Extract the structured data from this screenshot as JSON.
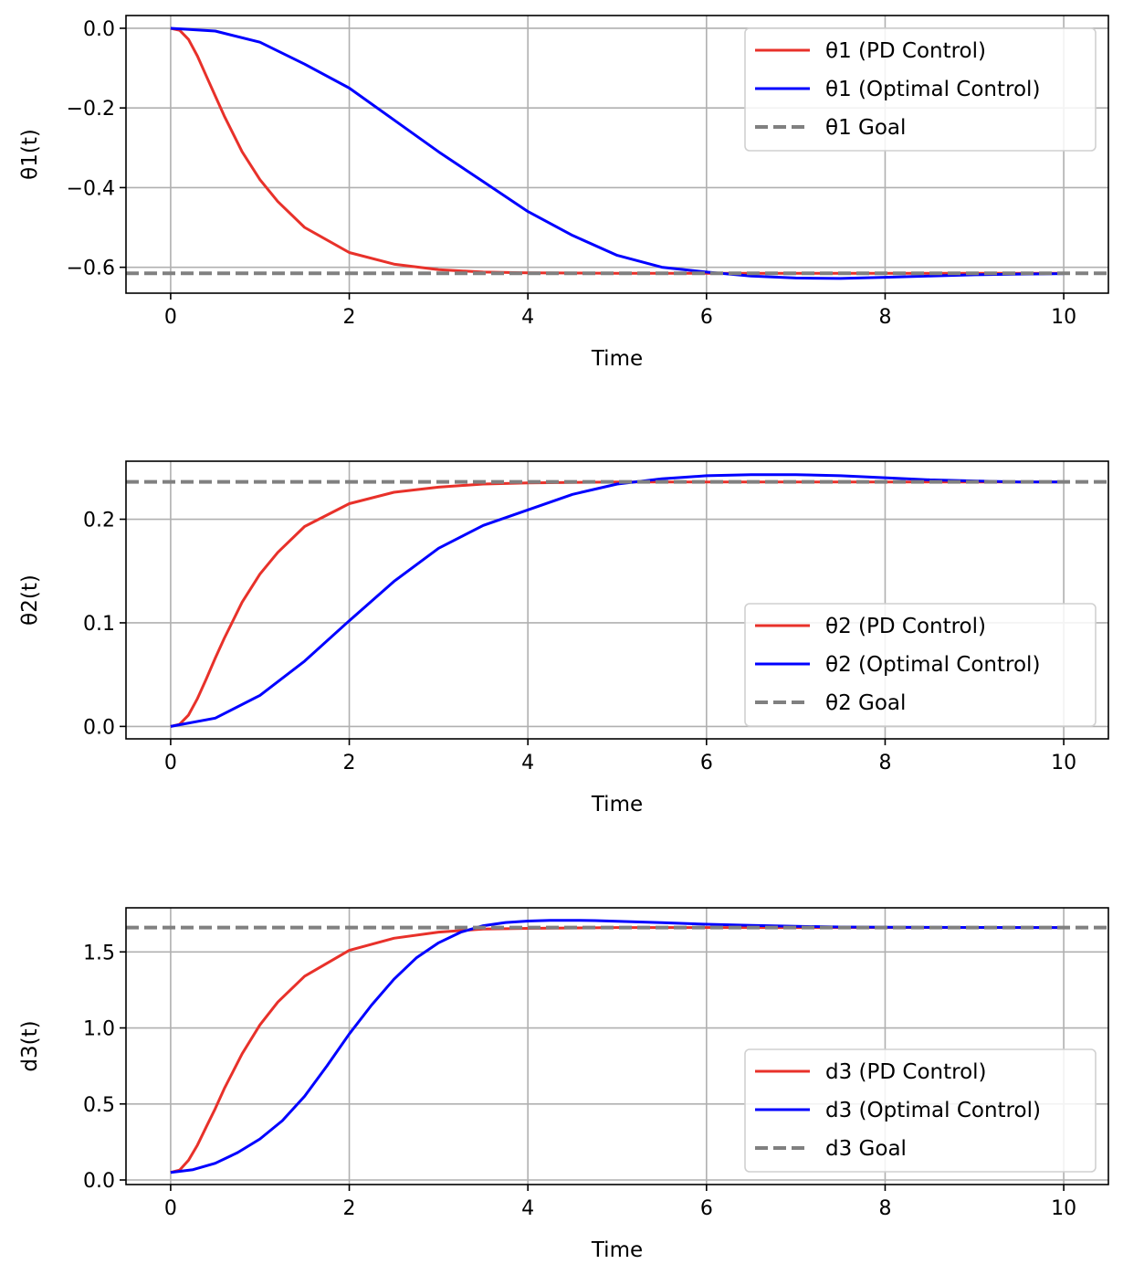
{
  "chart_data": [
    {
      "type": "line",
      "xlabel": "Time",
      "ylabel": "θ1(t)",
      "xlim": [
        -0.5,
        10.5
      ],
      "ylim": [
        -0.665,
        0.032
      ],
      "xticks": [
        0,
        2,
        4,
        6,
        8,
        10
      ],
      "xtick_labels": [
        "0",
        "2",
        "4",
        "6",
        "8",
        "10"
      ],
      "yticks": [
        0.0,
        -0.2,
        -0.4,
        -0.6
      ],
      "ytick_labels": [
        "0.0",
        "−0.2",
        "−0.4",
        "−0.6"
      ],
      "grid": true,
      "legend_position": "upper right",
      "goal": -0.615,
      "series": [
        {
          "name": "θ1 (PD Control)",
          "color": "#e8312a",
          "style": "solid",
          "x": [
            0,
            0.1,
            0.2,
            0.3,
            0.4,
            0.5,
            0.6,
            0.8,
            1.0,
            1.2,
            1.5,
            2.0,
            2.5,
            3.0,
            3.5,
            4.0,
            5.0,
            6.0,
            7.0,
            8.0,
            9.0,
            10.0
          ],
          "y": [
            0.0,
            -0.005,
            -0.028,
            -0.07,
            -0.12,
            -0.17,
            -0.22,
            -0.31,
            -0.38,
            -0.435,
            -0.5,
            -0.563,
            -0.592,
            -0.606,
            -0.612,
            -0.614,
            -0.615,
            -0.615,
            -0.615,
            -0.615,
            -0.615,
            -0.615
          ]
        },
        {
          "name": "θ1 (Optimal Control)",
          "color": "#0000ff",
          "style": "solid",
          "x": [
            0,
            0.5,
            1.0,
            1.5,
            2.0,
            2.5,
            3.0,
            3.5,
            4.0,
            4.5,
            5.0,
            5.5,
            6.0,
            6.5,
            7.0,
            7.5,
            8.0,
            8.5,
            9.0,
            9.5,
            10.0
          ],
          "y": [
            0.0,
            -0.007,
            -0.035,
            -0.09,
            -0.15,
            -0.23,
            -0.31,
            -0.385,
            -0.46,
            -0.52,
            -0.57,
            -0.6,
            -0.612,
            -0.622,
            -0.627,
            -0.628,
            -0.625,
            -0.622,
            -0.619,
            -0.617,
            -0.616
          ]
        },
        {
          "name": "θ1 Goal",
          "color": "#808080",
          "style": "dashed"
        }
      ]
    },
    {
      "type": "line",
      "xlabel": "Time",
      "ylabel": "θ2(t)",
      "xlim": [
        -0.5,
        10.5
      ],
      "ylim": [
        -0.012,
        0.256
      ],
      "xticks": [
        0,
        2,
        4,
        6,
        8,
        10
      ],
      "xtick_labels": [
        "0",
        "2",
        "4",
        "6",
        "8",
        "10"
      ],
      "yticks": [
        0.0,
        0.1,
        0.2
      ],
      "ytick_labels": [
        "0.0",
        "0.1",
        "0.2"
      ],
      "grid": true,
      "legend_position": "lower right",
      "goal": 0.236,
      "series": [
        {
          "name": "θ2 (PD Control)",
          "color": "#e8312a",
          "style": "solid",
          "x": [
            0,
            0.1,
            0.2,
            0.3,
            0.4,
            0.5,
            0.6,
            0.8,
            1.0,
            1.2,
            1.5,
            2.0,
            2.5,
            3.0,
            3.5,
            4.0,
            5.0,
            6.0,
            7.0,
            8.0,
            9.0,
            10.0
          ],
          "y": [
            0.0,
            0.002,
            0.011,
            0.027,
            0.046,
            0.066,
            0.085,
            0.12,
            0.147,
            0.168,
            0.193,
            0.215,
            0.226,
            0.231,
            0.234,
            0.235,
            0.236,
            0.236,
            0.236,
            0.236,
            0.236,
            0.236
          ]
        },
        {
          "name": "θ2 (Optimal Control)",
          "color": "#0000ff",
          "style": "solid",
          "x": [
            0,
            0.5,
            1.0,
            1.5,
            2.0,
            2.5,
            3.0,
            3.5,
            4.0,
            4.5,
            5.0,
            5.5,
            6.0,
            6.5,
            7.0,
            7.5,
            8.0,
            8.5,
            9.0,
            9.5,
            10.0
          ],
          "y": [
            0.0,
            0.008,
            0.03,
            0.063,
            0.102,
            0.14,
            0.172,
            0.194,
            0.209,
            0.224,
            0.234,
            0.239,
            0.242,
            0.243,
            0.243,
            0.242,
            0.24,
            0.238,
            0.237,
            0.236,
            0.236
          ]
        },
        {
          "name": "θ2 Goal",
          "color": "#808080",
          "style": "dashed"
        }
      ]
    },
    {
      "type": "line",
      "xlabel": "Time",
      "ylabel": "d3(t)",
      "xlim": [
        -0.5,
        10.5
      ],
      "ylim": [
        -0.03,
        1.79
      ],
      "xticks": [
        0,
        2,
        4,
        6,
        8,
        10
      ],
      "xtick_labels": [
        "0",
        "2",
        "4",
        "6",
        "8",
        "10"
      ],
      "yticks": [
        0.0,
        0.5,
        1.0,
        1.5
      ],
      "ytick_labels": [
        "0.0",
        "0.5",
        "1.0",
        "1.5"
      ],
      "grid": true,
      "legend_position": "lower right",
      "goal": 1.66,
      "series": [
        {
          "name": "d3 (PD Control)",
          "color": "#e8312a",
          "style": "solid",
          "x": [
            0,
            0.1,
            0.2,
            0.3,
            0.4,
            0.5,
            0.6,
            0.8,
            1.0,
            1.2,
            1.5,
            2.0,
            2.5,
            3.0,
            3.5,
            4.0,
            5.0,
            6.0,
            7.0,
            8.0,
            9.0,
            10.0
          ],
          "y": [
            0.05,
            0.065,
            0.13,
            0.23,
            0.35,
            0.47,
            0.6,
            0.83,
            1.02,
            1.17,
            1.34,
            1.51,
            1.59,
            1.63,
            1.65,
            1.655,
            1.66,
            1.66,
            1.66,
            1.66,
            1.66,
            1.66
          ]
        },
        {
          "name": "d3 (Optimal Control)",
          "color": "#0000ff",
          "style": "solid",
          "x": [
            0,
            0.25,
            0.5,
            0.75,
            1.0,
            1.25,
            1.5,
            1.75,
            2.0,
            2.25,
            2.5,
            2.75,
            3.0,
            3.25,
            3.5,
            3.75,
            4.0,
            4.25,
            4.5,
            4.75,
            5.0,
            5.5,
            6.0,
            6.5,
            7.0,
            7.5,
            8.0,
            9.0,
            10.0
          ],
          "y": [
            0.05,
            0.068,
            0.11,
            0.18,
            0.27,
            0.39,
            0.55,
            0.75,
            0.96,
            1.15,
            1.32,
            1.46,
            1.56,
            1.63,
            1.672,
            1.693,
            1.703,
            1.707,
            1.708,
            1.706,
            1.702,
            1.692,
            1.682,
            1.674,
            1.668,
            1.664,
            1.662,
            1.661,
            1.66
          ]
        },
        {
          "name": "d3 Goal",
          "color": "#808080",
          "style": "dashed"
        }
      ]
    }
  ]
}
